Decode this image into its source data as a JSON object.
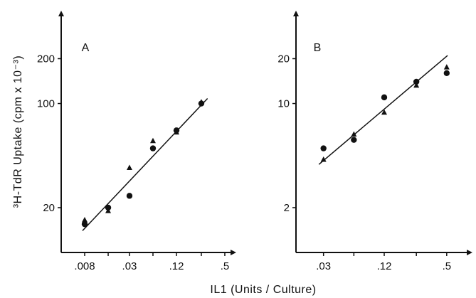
{
  "figure": {
    "ylabel": "³H-TdR Uptake (cpm x 10⁻³)",
    "xlabel": "IL1 (Units / Culture)"
  },
  "chart_data": [
    {
      "type": "scatter",
      "panel_label": "A",
      "xscale": "log",
      "yscale": "log",
      "xlim": [
        0.004,
        0.7
      ],
      "ylim": [
        10,
        420
      ],
      "x_ticks": [
        0.008,
        0.016,
        0.03,
        0.06,
        0.12,
        0.25,
        0.5
      ],
      "x_tick_labels": [
        ".008",
        "",
        ".03",
        "",
        ".12",
        "",
        ".5"
      ],
      "y_ticks": [
        20,
        100,
        200
      ],
      "y_tick_labels": [
        "20",
        "100",
        "200"
      ],
      "series": [
        {
          "marker": "circle",
          "x": [
            0.008,
            0.016,
            0.03,
            0.06,
            0.12,
            0.25
          ],
          "y": [
            15.5,
            20,
            24,
            50,
            66,
            100
          ]
        },
        {
          "marker": "triangle",
          "x": [
            0.008,
            0.016,
            0.03,
            0.06,
            0.12,
            0.25
          ],
          "y": [
            16.5,
            19,
            37,
            56,
            64,
            102
          ]
        }
      ],
      "fit_line": {
        "x": [
          0.0075,
          0.3
        ],
        "y": [
          14,
          108
        ]
      }
    },
    {
      "type": "scatter",
      "panel_label": "B",
      "xscale": "log",
      "yscale": "log",
      "xlim": [
        0.016,
        0.9
      ],
      "ylim": [
        1,
        42
      ],
      "x_ticks": [
        0.03,
        0.06,
        0.12,
        0.25,
        0.5
      ],
      "x_tick_labels": [
        ".03",
        "",
        ".12",
        "",
        ".5"
      ],
      "y_ticks": [
        2,
        10,
        20
      ],
      "y_tick_labels": [
        "2",
        "10",
        "20"
      ],
      "series": [
        {
          "marker": "circle",
          "x": [
            0.03,
            0.06,
            0.12,
            0.25,
            0.5
          ],
          "y": [
            5,
            5.7,
            11,
            14,
            16
          ]
        },
        {
          "marker": "triangle",
          "x": [
            0.03,
            0.06,
            0.12,
            0.25,
            0.5
          ],
          "y": [
            4.2,
            6.2,
            8.7,
            13.2,
            17.5
          ]
        }
      ],
      "fit_line": {
        "x": [
          0.027,
          0.51
        ],
        "y": [
          3.9,
          21
        ]
      }
    }
  ]
}
